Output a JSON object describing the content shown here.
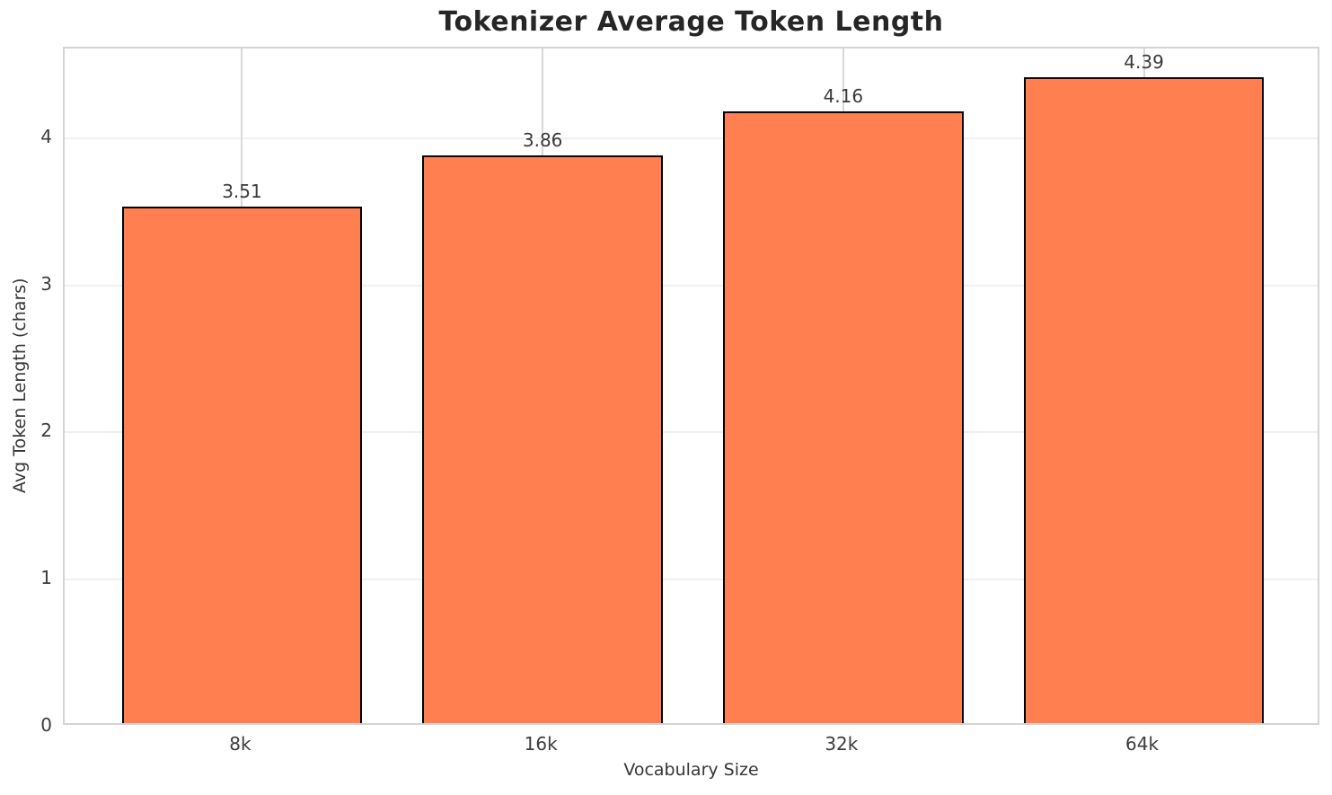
{
  "chart_data": {
    "type": "bar",
    "title": "Tokenizer Average Token Length",
    "xlabel": "Vocabulary Size",
    "ylabel": "Avg Token Length (chars)",
    "categories": [
      "8k",
      "16k",
      "32k",
      "64k"
    ],
    "values": [
      3.51,
      3.86,
      4.16,
      4.39
    ],
    "value_labels": [
      "3.51",
      "3.86",
      "4.16",
      "4.39"
    ],
    "yticks": [
      0,
      1,
      2,
      3,
      4
    ],
    "ytick_labels": [
      "0",
      "1",
      "2",
      "3",
      "4"
    ],
    "ylim": [
      0,
      4.61
    ],
    "xlim": [
      -0.59,
      3.59
    ],
    "bar_width": 0.8,
    "grid": true,
    "legend": "none",
    "colors": {
      "bar_fill": "#FF7F50",
      "bar_edge": "#000000",
      "grid_horizontal": "#f0f0f0",
      "grid_vertical": "#d8d8d8",
      "spine": "#d4d4d4",
      "title_text": "#262626",
      "tick_text": "#3c3c3c",
      "background": "#ffffff"
    }
  }
}
